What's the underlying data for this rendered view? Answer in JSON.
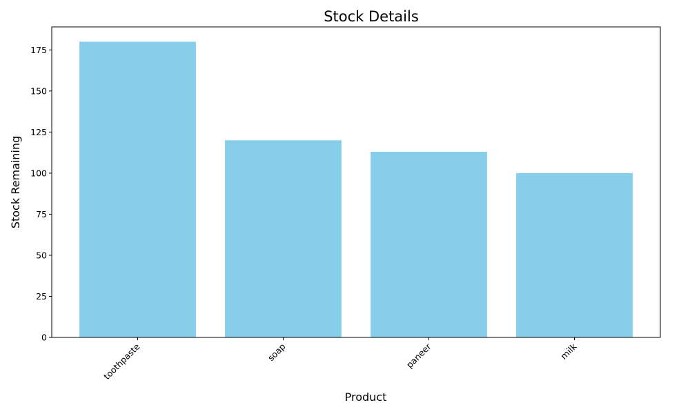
{
  "chart_data": {
    "type": "bar",
    "title": "Stock Details",
    "xlabel": "Product",
    "ylabel": "Stock Remaining",
    "categories": [
      "toothpaste",
      "soap",
      "paneer",
      "milk"
    ],
    "values": [
      180,
      120,
      113,
      100
    ],
    "ylim": [
      0,
      189
    ],
    "yticks": [
      0,
      25,
      50,
      75,
      100,
      125,
      150,
      175
    ],
    "bar_color": "#87CEEB",
    "grid": false,
    "legend": "none",
    "xtick_rotation": 45
  }
}
